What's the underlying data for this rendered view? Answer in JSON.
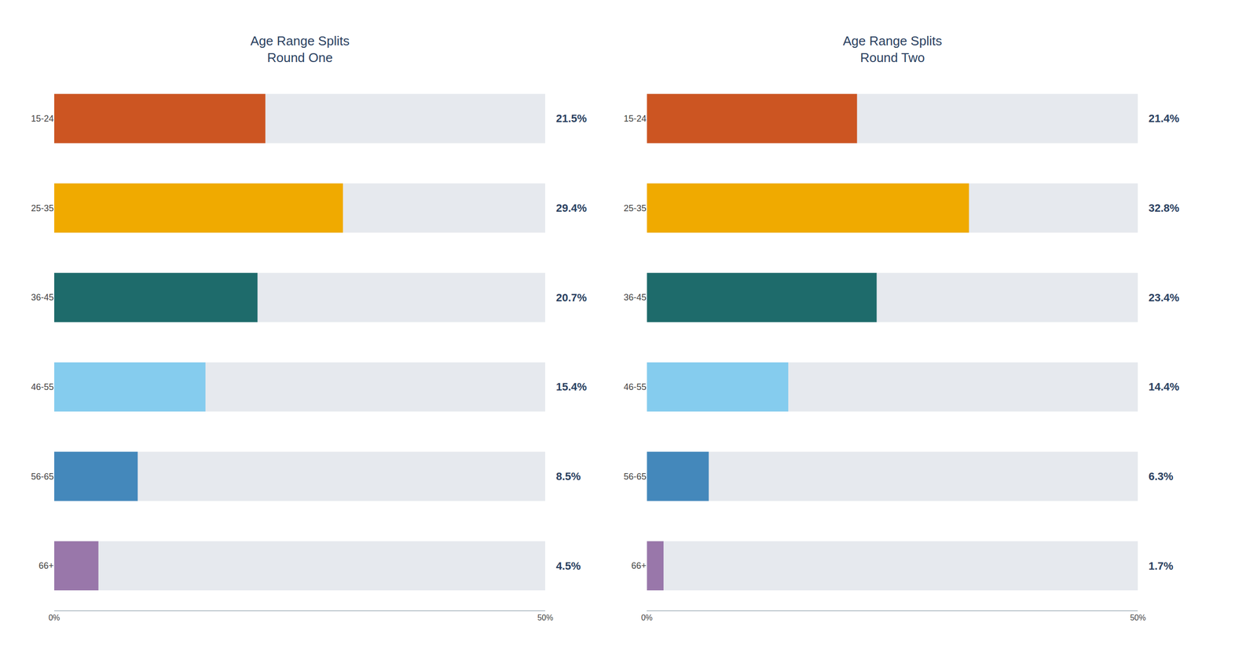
{
  "chart_data": [
    {
      "type": "bar",
      "orientation": "horizontal",
      "title": "Age Range Splits\nRound One",
      "categories": [
        "15-24",
        "25-35",
        "36-45",
        "46-55",
        "56-65",
        "66+"
      ],
      "values": [
        21.5,
        29.4,
        20.7,
        15.4,
        8.5,
        4.5
      ],
      "colors": [
        "#cc5522",
        "#f0aa00",
        "#1e6b6b",
        "#85ccee",
        "#4488bb",
        "#9977aa"
      ],
      "data_labels": true,
      "value_labels": [
        "21.5%",
        "29.4%",
        "20.7%",
        "15.4%",
        "8.5%",
        "4.5%"
      ],
      "xlim": [
        0,
        50
      ],
      "xticks": [
        {
          "value": 0,
          "label": "0%"
        },
        {
          "value": 50,
          "label": "50%"
        }
      ],
      "grid": false
    },
    {
      "type": "bar",
      "orientation": "horizontal",
      "title": "Age Range Splits\nRound Two",
      "categories": [
        "15-24",
        "25-35",
        "36-45",
        "46-55",
        "56-65",
        "66+"
      ],
      "values": [
        21.4,
        32.8,
        23.4,
        14.4,
        6.3,
        1.7
      ],
      "colors": [
        "#cc5522",
        "#f0aa00",
        "#1e6b6b",
        "#85ccee",
        "#4488bb",
        "#9977aa"
      ],
      "data_labels": true,
      "value_labels": [
        "21.4%",
        "32.8%",
        "23.4%",
        "14.4%",
        "6.3%",
        "1.7%"
      ],
      "xlim": [
        0,
        50
      ],
      "xticks": [
        {
          "value": 0,
          "label": "0%"
        },
        {
          "value": 50,
          "label": "50%"
        }
      ],
      "grid": false
    }
  ]
}
